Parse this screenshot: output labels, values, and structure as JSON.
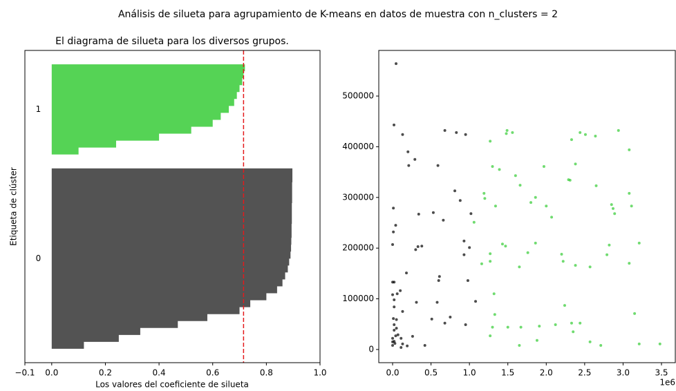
{
  "suptitle": "Análisis de silueta para agrupamiento de K-means en datos de muestra con n_clusters = 2",
  "chart_data": [
    {
      "type": "silhouette",
      "title": "El diagrama de silueta para los diversos grupos.",
      "xlabel": "Los valores del coeficiente de silueta",
      "ylabel": "Etiqueta de clúster",
      "xlim": [
        -0.1,
        1.0
      ],
      "xticks": [
        {
          "value": -0.1,
          "label": "−0.1"
        },
        {
          "value": 0,
          "label": "0.0"
        },
        0.2,
        0.4,
        0.6,
        0.8,
        {
          "value": 1,
          "label": "1.0"
        }
      ],
      "series": [
        {
          "name": "0",
          "color": "#4a4a4a",
          "values": [
            0.12,
            0.25,
            0.33,
            0.47,
            0.58,
            0.7,
            0.74,
            0.8,
            0.84,
            0.86,
            0.87,
            0.88,
            0.885,
            0.89,
            0.892,
            0.893,
            0.894,
            0.894,
            0.895,
            0.895,
            0.895,
            0.896,
            0.896,
            0.896,
            0.897,
            0.897
          ]
        },
        {
          "name": "1",
          "color": "#4cd14c",
          "values": [
            0.1,
            0.24,
            0.4,
            0.52,
            0.6,
            0.63,
            0.66,
            0.68,
            0.69,
            0.7,
            0.71,
            0.715,
            0.72
          ]
        }
      ],
      "average": 0.715,
      "average_color": "#e41a1c"
    },
    {
      "type": "scatter",
      "x_offset_label": "1e6",
      "xlim": [
        -0.18,
        3.68
      ],
      "xticks": [
        {
          "value": 0,
          "label": "0.0"
        },
        0.5,
        {
          "value": 1,
          "label": "1.0"
        },
        1.5,
        {
          "value": 2,
          "label": "2.0"
        },
        2.5,
        {
          "value": 3,
          "label": "3.0"
        },
        3.5
      ],
      "ylim": [
        -26000,
        590000
      ],
      "yticks": [
        0,
        100000,
        200000,
        300000,
        400000,
        500000
      ],
      "series": [
        {
          "color": "#000000",
          "x": [
            0.045,
            0.018,
            0.13,
            0.2,
            0.29,
            0.21,
            0.68,
            0.83,
            0.95,
            0.59,
            0.81,
            0.88,
            0.01,
            0.53,
            0.34,
            1.02,
            0.66,
            0.04,
            0.01,
            0.0,
            0.38,
            0.33,
            0.3,
            0.93,
            1.0,
            0.93,
            0.18,
            0.61,
            0.6,
            0.98,
            0.0,
            0.02,
            0.1,
            0.06,
            0.0,
            0.02,
            1.08,
            0.31,
            0.58,
            0.02,
            0.13,
            0.75,
            0.51,
            0.01,
            0.05,
            0.68,
            0.95,
            0.02,
            0.05,
            0.02,
            0.07,
            0.26,
            0.11,
            0.0,
            0.02,
            0.03,
            0.0,
            0.13,
            0.19,
            0.42,
            0.11,
            0.04,
            0.0
          ],
          "values": [
            564000,
            443000,
            424000,
            390000,
            375000,
            363000,
            432000,
            428000,
            424000,
            363000,
            313000,
            294000,
            279000,
            270000,
            267000,
            268000,
            255000,
            245000,
            232000,
            207000,
            204000,
            203000,
            197000,
            214000,
            201000,
            187000,
            151000,
            144000,
            136000,
            136000,
            133000,
            133000,
            116000,
            110000,
            108000,
            98000,
            95000,
            93000,
            93000,
            84000,
            75000,
            64000,
            60000,
            61000,
            59000,
            52000,
            49000,
            49000,
            42000,
            38000,
            29000,
            26000,
            22000,
            22000,
            16000,
            12000,
            8000,
            11000,
            7000,
            8000,
            4000,
            27000,
            15000
          ]
        },
        {
          "color": "#33cc33",
          "x": [
            1.49,
            1.48,
            1.56,
            1.27,
            2.33,
            2.44,
            2.51,
            2.64,
            2.94,
            3.08,
            1.3,
            1.39,
            1.6,
            1.97,
            2.38,
            2.29,
            2.31,
            1.66,
            2.65,
            1.19,
            1.2,
            1.86,
            1.8,
            2.0,
            1.34,
            3.08,
            2.85,
            2.87,
            3.11,
            2.89,
            2.07,
            1.06,
            1.43,
            1.47,
            1.86,
            2.82,
            3.21,
            1.27,
            2.2,
            2.79,
            1.76,
            1.16,
            1.27,
            2.22,
            2.38,
            1.65,
            2.57,
            3.08,
            1.32,
            2.24,
            1.33,
            3.15,
            2.33,
            2.44,
            1.3,
            1.5,
            1.67,
            1.91,
            2.12,
            2.35,
            1.27,
            1.88,
            2.57,
            2.71,
            1.65,
            3.21,
            3.48
          ],
          "values": [
            432000,
            426000,
            428000,
            411000,
            414000,
            428000,
            424000,
            421000,
            432000,
            394000,
            361000,
            355000,
            343000,
            361000,
            366000,
            335000,
            334000,
            324000,
            323000,
            308000,
            298000,
            300000,
            290000,
            283000,
            283000,
            308000,
            286000,
            278000,
            283000,
            268000,
            261000,
            251000,
            208000,
            204000,
            210000,
            206000,
            210000,
            189000,
            188000,
            187000,
            191000,
            169000,
            174000,
            174000,
            166000,
            163000,
            163000,
            170000,
            110000,
            87000,
            69000,
            71000,
            52000,
            52000,
            44000,
            44000,
            44000,
            46000,
            49000,
            35000,
            27000,
            18000,
            15000,
            8000,
            8000,
            11000,
            11000
          ]
        }
      ]
    }
  ]
}
